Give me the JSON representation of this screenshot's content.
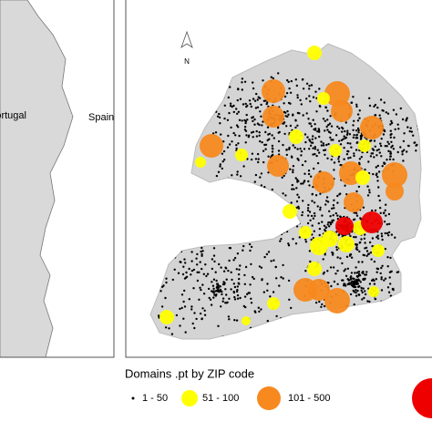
{
  "labels": {
    "portugal": "Portugal",
    "spain": "Spain",
    "north": "N"
  },
  "legend": {
    "title": "Domains .pt by ZIP code",
    "items": [
      "1 - 50",
      "51 - 100",
      "101 - 500"
    ]
  }
}
